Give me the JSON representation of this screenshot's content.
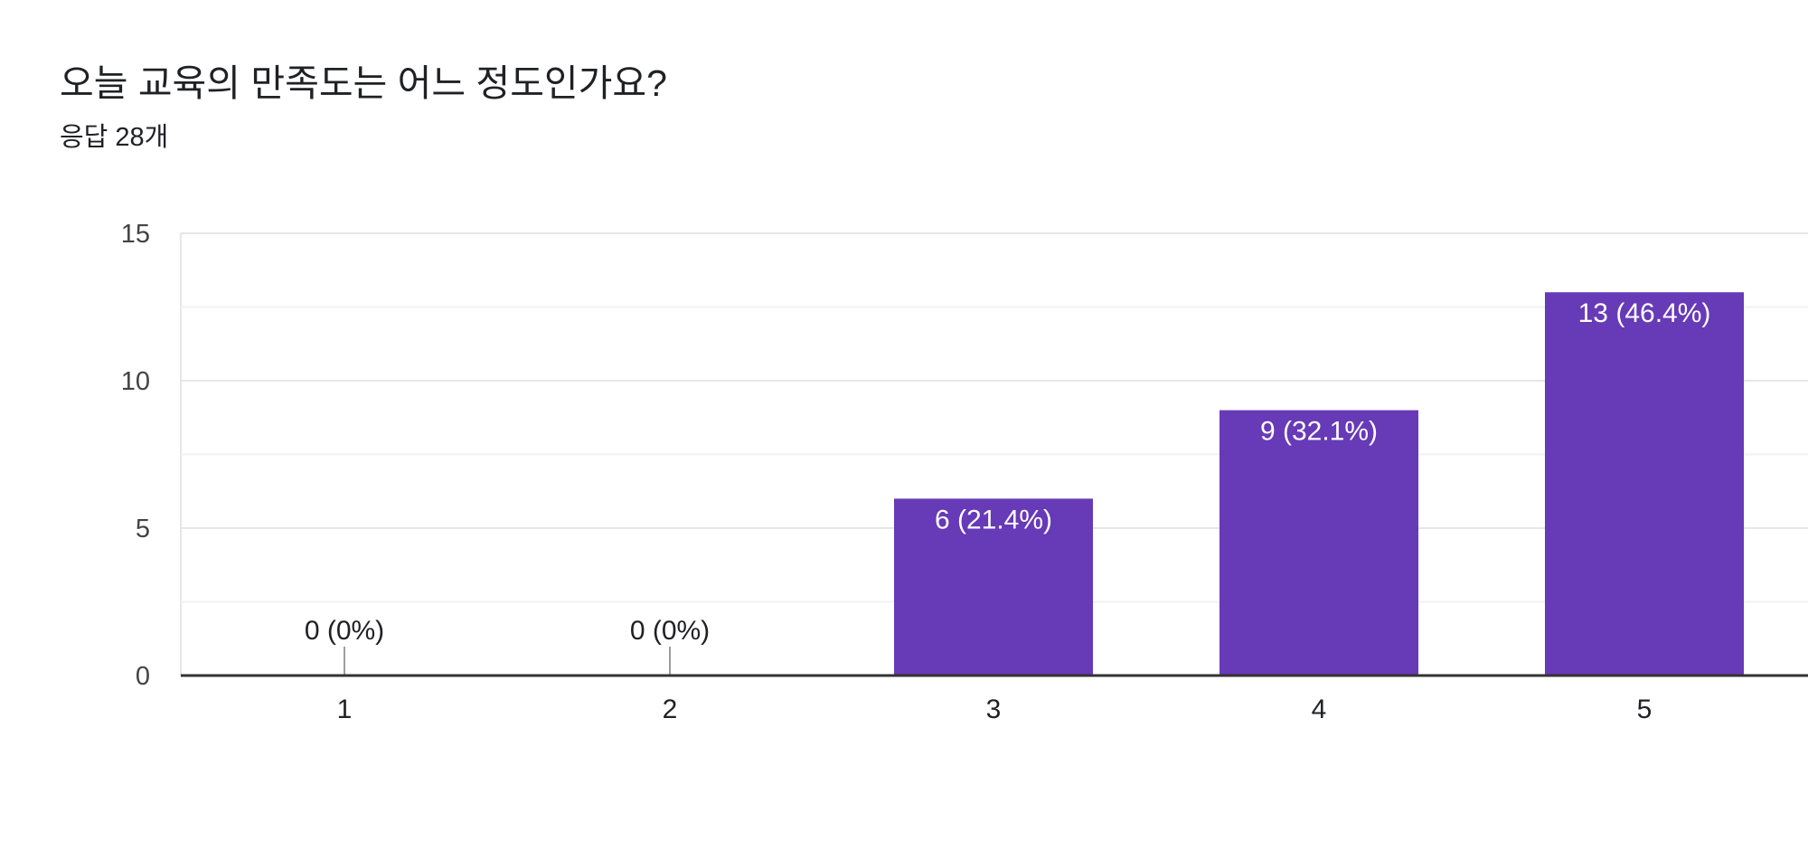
{
  "question": {
    "title": "오늘 교육의 만족도는 어느 정도인가요?",
    "response_count": "응답 28개"
  },
  "colors": {
    "bar": "#673ab7",
    "zero_tick": "#9e9e9e",
    "grid_major": "#e6e6e6",
    "grid_minor": "#f2f2f2",
    "axis": "#333333",
    "bar_label": "#ffffff",
    "outside_label": "#202124",
    "tick_label": "#444444",
    "category_label": "#202124"
  },
  "chart_data": {
    "type": "bar",
    "title": "",
    "xlabel": "",
    "ylabel": "",
    "categories": [
      "1",
      "2",
      "3",
      "4",
      "5"
    ],
    "values": [
      0,
      0,
      6,
      9,
      13
    ],
    "data_labels": [
      "0 (0%)",
      "0 (0%)",
      "6 (21.4%)",
      "9 (32.1%)",
      "13 (46.4%)"
    ],
    "ylim": [
      0,
      15
    ],
    "yticks": [
      {
        "value": 0,
        "label": "0"
      },
      {
        "value": 5,
        "label": "5"
      },
      {
        "value": 10,
        "label": "10"
      },
      {
        "value": 15,
        "label": "15"
      }
    ],
    "minor_gridlines": [
      2.5,
      7.5,
      12.5
    ],
    "grid": true,
    "legend": "none"
  }
}
